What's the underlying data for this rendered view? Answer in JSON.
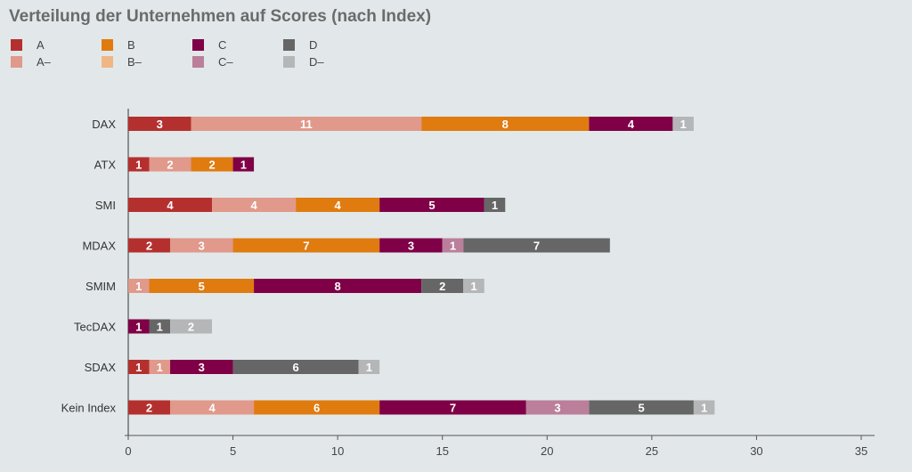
{
  "chart_data": {
    "type": "bar",
    "orientation": "horizontal",
    "stacked": true,
    "title": "Verteilung der Unternehmen auf Scores (nach Index)",
    "xlabel": "",
    "ylabel": "",
    "xlim": [
      0,
      35
    ],
    "xticks": [
      0,
      5,
      10,
      15,
      20,
      25,
      30,
      35
    ],
    "grid": false,
    "legend_position": "top-left",
    "categories": [
      "DAX",
      "ATX",
      "SMI",
      "MDAX",
      "SMIM",
      "TecDAX",
      "SDAX",
      "Kein Index"
    ],
    "series": [
      {
        "name": "A",
        "color": "#b4302f",
        "values": [
          3,
          1,
          4,
          2,
          0,
          0,
          1,
          2
        ]
      },
      {
        "name": "A–",
        "color": "#e0998a",
        "values": [
          11,
          2,
          4,
          3,
          1,
          0,
          1,
          4
        ]
      },
      {
        "name": "B",
        "color": "#e07b10",
        "values": [
          8,
          2,
          4,
          7,
          5,
          0,
          0,
          6
        ]
      },
      {
        "name": "B–",
        "color": "#f0b685",
        "values": [
          0,
          0,
          0,
          0,
          0,
          0,
          0,
          0
        ]
      },
      {
        "name": "C",
        "color": "#7f0046",
        "values": [
          4,
          1,
          5,
          3,
          8,
          1,
          3,
          7
        ]
      },
      {
        "name": "C–",
        "color": "#bb7f9b",
        "values": [
          0,
          0,
          0,
          1,
          0,
          0,
          0,
          3
        ]
      },
      {
        "name": "D",
        "color": "#666667",
        "values": [
          0,
          0,
          1,
          7,
          2,
          1,
          6,
          5
        ]
      },
      {
        "name": "D–",
        "color": "#b5b6b8",
        "values": [
          1,
          0,
          0,
          0,
          1,
          2,
          1,
          1
        ]
      }
    ]
  }
}
